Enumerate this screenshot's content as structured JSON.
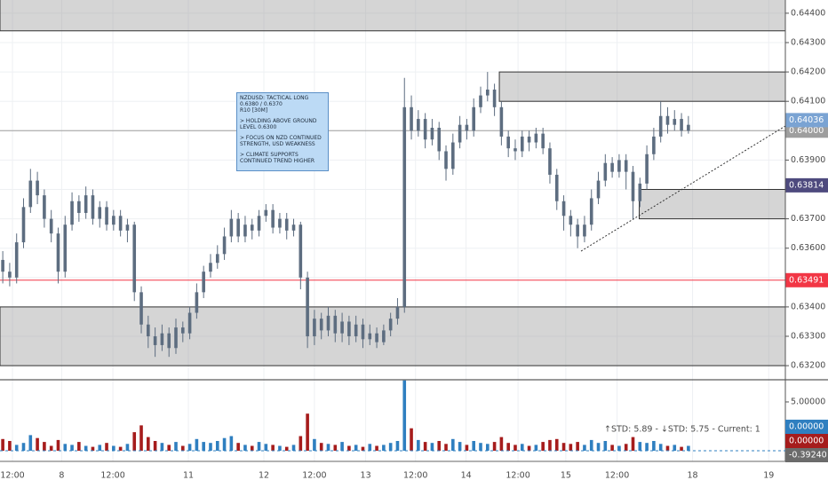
{
  "chart_data": {
    "type": "candlestick",
    "color": "#5d6d80",
    "x": [
      0,
      1,
      2,
      3,
      4,
      5,
      6,
      7,
      8,
      9,
      10,
      11,
      12,
      13,
      14,
      15,
      16,
      17,
      18,
      19,
      20,
      21,
      22,
      23,
      24,
      25,
      26,
      27,
      28,
      29,
      30,
      31,
      32,
      33,
      34,
      35,
      36,
      37,
      38,
      39,
      40,
      41,
      42,
      43,
      44,
      45,
      46,
      47,
      48,
      49,
      50,
      51,
      52,
      53,
      54,
      55,
      56,
      57,
      58,
      59,
      60,
      61,
      62,
      63,
      64,
      65,
      66,
      67,
      68,
      69,
      70,
      71,
      72,
      73,
      74,
      75,
      76,
      77,
      78,
      79,
      80,
      81,
      82,
      83,
      84,
      85,
      86,
      87,
      88,
      89,
      90,
      91,
      92,
      93,
      94,
      95,
      96,
      97,
      98,
      99
    ],
    "open": [
      0.6356,
      0.6352,
      0.635,
      0.6362,
      0.6374,
      0.6383,
      0.6378,
      0.637,
      0.6365,
      0.6352,
      0.6368,
      0.6376,
      0.6372,
      0.6378,
      0.637,
      0.6374,
      0.6368,
      0.6371,
      0.6366,
      0.6368,
      0.6345,
      0.6334,
      0.633,
      0.6327,
      0.6331,
      0.6326,
      0.6333,
      0.6331,
      0.6338,
      0.6345,
      0.6352,
      0.6355,
      0.6358,
      0.6364,
      0.637,
      0.6364,
      0.6368,
      0.6366,
      0.6371,
      0.6373,
      0.6367,
      0.637,
      0.6366,
      0.6368,
      0.635,
      0.633,
      0.6336,
      0.6332,
      0.6337,
      0.6331,
      0.6335,
      0.633,
      0.6334,
      0.6329,
      0.6331,
      0.6328,
      0.6332,
      0.6336,
      0.634,
      0.6408,
      0.64,
      0.6404,
      0.6397,
      0.6401,
      0.6393,
      0.6387,
      0.6396,
      0.6402,
      0.64,
      0.6408,
      0.6412,
      0.6414,
      0.6408,
      0.6398,
      0.6394,
      0.6393,
      0.6398,
      0.6396,
      0.6399,
      0.6394,
      0.6385,
      0.6376,
      0.6371,
      0.6368,
      0.6364,
      0.6368,
      0.6377,
      0.6383,
      0.6389,
      0.6386,
      0.639,
      0.6386,
      0.6376,
      0.6382,
      0.6392,
      0.6398,
      0.6405,
      0.6402,
      0.6404,
      0.64
    ],
    "high": [
      0.6359,
      0.6355,
      0.6365,
      0.6377,
      0.6387,
      0.6386,
      0.638,
      0.6373,
      0.6367,
      0.6371,
      0.6379,
      0.6378,
      0.6381,
      0.638,
      0.6376,
      0.6376,
      0.6373,
      0.6373,
      0.637,
      0.6369,
      0.6347,
      0.6337,
      0.6333,
      0.6334,
      0.6333,
      0.6336,
      0.6335,
      0.634,
      0.6348,
      0.6354,
      0.6358,
      0.6361,
      0.6367,
      0.6373,
      0.6372,
      0.6371,
      0.637,
      0.6373,
      0.6375,
      0.6375,
      0.6372,
      0.6372,
      0.637,
      0.6369,
      0.6352,
      0.6339,
      0.6338,
      0.634,
      0.6339,
      0.6338,
      0.6337,
      0.6337,
      0.6336,
      0.6334,
      0.6333,
      0.6334,
      0.6338,
      0.6343,
      0.6418,
      0.6412,
      0.6407,
      0.6406,
      0.6404,
      0.6403,
      0.6395,
      0.6399,
      0.6405,
      0.6404,
      0.6411,
      0.6415,
      0.642,
      0.6416,
      0.641,
      0.64,
      0.6397,
      0.64,
      0.64,
      0.6401,
      0.6401,
      0.6396,
      0.6387,
      0.6378,
      0.6373,
      0.637,
      0.6371,
      0.638,
      0.6386,
      0.6392,
      0.6391,
      0.6392,
      0.6392,
      0.6388,
      0.6384,
      0.6395,
      0.6401,
      0.641,
      0.6408,
      0.6407,
      0.6406,
      0.6405
    ],
    "low": [
      0.6348,
      0.6347,
      0.6348,
      0.636,
      0.6372,
      0.6375,
      0.6367,
      0.6362,
      0.6348,
      0.635,
      0.6366,
      0.6369,
      0.637,
      0.6368,
      0.6367,
      0.6366,
      0.6366,
      0.6364,
      0.6362,
      0.6342,
      0.6331,
      0.6326,
      0.6323,
      0.6325,
      0.6323,
      0.6324,
      0.6328,
      0.6329,
      0.6336,
      0.6343,
      0.635,
      0.6353,
      0.6356,
      0.6362,
      0.6362,
      0.6362,
      0.6363,
      0.6364,
      0.6369,
      0.6365,
      0.6365,
      0.6363,
      0.6364,
      0.6346,
      0.6326,
      0.6327,
      0.6329,
      0.633,
      0.6328,
      0.6328,
      0.6327,
      0.6328,
      0.6326,
      0.6327,
      0.6326,
      0.6327,
      0.633,
      0.6334,
      0.6338,
      0.6397,
      0.6398,
      0.6394,
      0.6395,
      0.639,
      0.6383,
      0.6385,
      0.6394,
      0.6397,
      0.6398,
      0.6406,
      0.641,
      0.6405,
      0.6395,
      0.6391,
      0.639,
      0.6391,
      0.6393,
      0.6394,
      0.6392,
      0.6382,
      0.6373,
      0.6366,
      0.6364,
      0.636,
      0.6362,
      0.6366,
      0.6375,
      0.6381,
      0.6384,
      0.6384,
      0.638,
      0.637,
      0.6374,
      0.638,
      0.639,
      0.6396,
      0.6399,
      0.64,
      0.6398,
      0.6399
    ],
    "close": [
      0.6352,
      0.635,
      0.6362,
      0.6374,
      0.6383,
      0.6378,
      0.637,
      0.6365,
      0.6352,
      0.6368,
      0.6376,
      0.6372,
      0.6378,
      0.637,
      0.6374,
      0.6368,
      0.6371,
      0.6366,
      0.6368,
      0.6345,
      0.6334,
      0.633,
      0.6327,
      0.6331,
      0.6326,
      0.6333,
      0.6331,
      0.6338,
      0.6345,
      0.6352,
      0.6355,
      0.6358,
      0.6364,
      0.637,
      0.6364,
      0.6368,
      0.6366,
      0.6371,
      0.6373,
      0.6367,
      0.637,
      0.6366,
      0.6368,
      0.635,
      0.633,
      0.6336,
      0.6332,
      0.6337,
      0.6331,
      0.6335,
      0.633,
      0.6334,
      0.6329,
      0.6331,
      0.6328,
      0.6332,
      0.6336,
      0.634,
      0.6408,
      0.64,
      0.6404,
      0.6397,
      0.6401,
      0.6393,
      0.6387,
      0.6396,
      0.6402,
      0.64,
      0.6408,
      0.6412,
      0.6414,
      0.6408,
      0.6398,
      0.6394,
      0.6393,
      0.6398,
      0.6396,
      0.6399,
      0.6394,
      0.6385,
      0.6376,
      0.6371,
      0.6368,
      0.6364,
      0.6368,
      0.6377,
      0.6383,
      0.6389,
      0.6386,
      0.639,
      0.6386,
      0.6376,
      0.6382,
      0.6392,
      0.6398,
      0.6405,
      0.6402,
      0.6404,
      0.64,
      0.6402
    ],
    "xlim": [
      -0.4,
      113
    ],
    "ylim": [
      0.63152,
      0.64445
    ],
    "xticks": [
      {
        "value": 1.4,
        "label": "12:00"
      },
      {
        "value": 8.5,
        "label": "8"
      },
      {
        "value": 15.9,
        "label": "12:00"
      },
      {
        "value": 26.8,
        "label": "11"
      },
      {
        "value": 37.7,
        "label": "12"
      },
      {
        "value": 45,
        "label": "12:00"
      },
      {
        "value": 52.4,
        "label": "13"
      },
      {
        "value": 59.6,
        "label": "12:00"
      },
      {
        "value": 66.9,
        "label": "14"
      },
      {
        "value": 74.4,
        "label": "12:00"
      },
      {
        "value": 81.3,
        "label": "15"
      },
      {
        "value": 88.7,
        "label": "12:00"
      },
      {
        "value": 99.6,
        "label": "18"
      },
      {
        "value": 110.6,
        "label": "19"
      }
    ],
    "yticks": [
      {
        "value": 0.644,
        "label": "0.64400"
      },
      {
        "value": 0.643,
        "label": "0.64300"
      },
      {
        "value": 0.642,
        "label": "0.64200"
      },
      {
        "value": 0.641,
        "label": "0.64100"
      },
      {
        "value": 0.64,
        "label": "0.64000"
      },
      {
        "value": 0.639,
        "label": "0.63900"
      },
      {
        "value": 0.638,
        "label": "0.63800"
      },
      {
        "value": 0.637,
        "label": "0.63700"
      },
      {
        "value": 0.636,
        "label": "0.63600"
      },
      {
        "value": 0.635,
        "label": "0.63500"
      },
      {
        "value": 0.634,
        "label": "0.63400"
      },
      {
        "value": 0.633,
        "label": "0.63300"
      },
      {
        "value": 0.632,
        "label": "0.63200"
      }
    ],
    "grid": true,
    "zones": [
      {
        "low": 0.6434,
        "high": 0.6446
      },
      {
        "low": 0.632,
        "high": 0.634
      },
      {
        "low": 0.641,
        "high": 0.642,
        "x_start": 71.7
      },
      {
        "low": 0.637,
        "high": 0.638,
        "x_start": 91.9
      }
    ],
    "trendline": {
      "x": [
        83.5,
        113
      ],
      "y": [
        0.6359,
        0.64016
      ]
    },
    "price_lines": [
      {
        "value": 0.64,
        "label": "0.64000",
        "color": "#9e9e9e"
      },
      {
        "value": 0.63491,
        "label": "0.63491",
        "color": "#f23645"
      }
    ],
    "price_badges": [
      {
        "value": 0.64036,
        "label": "0.64036",
        "color": "#7aa3d3"
      },
      {
        "value": 0.63814,
        "label": "0.63814",
        "color": "#4e4a7e"
      }
    ],
    "annotation": [
      "NZDUSD: TACTICAL LONG 0.6380 / 0.6370",
      "R10 [30M]",
      "> HOLDING ABOVE GROUND LEVEL 0.6300",
      "> FOCUS ON NZD CONTINUED STRENGTH, USD WEAKNESS",
      "> CLIMATE SUPPORTS CONTINUED TREND HIGHER"
    ],
    "indicator": {
      "type": "histogram",
      "label": "↑STD: 5.89 - ↓STD: 5.75 - Current: 1",
      "up_color": "#2f7fc0",
      "down_color": "#a61c1c",
      "values": [
        1.2,
        1.0,
        0.6,
        0.8,
        1.6,
        1.3,
        0.9,
        0.5,
        1.1,
        0.7,
        0.6,
        0.9,
        0.5,
        0.4,
        0.6,
        0.8,
        0.5,
        0.4,
        0.7,
        1.9,
        2.6,
        1.4,
        1.0,
        0.8,
        0.6,
        0.9,
        0.5,
        0.7,
        1.2,
        0.9,
        0.8,
        1.0,
        1.3,
        1.5,
        0.8,
        0.6,
        0.5,
        0.9,
        0.7,
        0.6,
        0.5,
        0.4,
        0.6,
        1.5,
        3.8,
        1.2,
        0.8,
        0.7,
        0.6,
        0.9,
        0.5,
        0.6,
        0.4,
        0.7,
        0.5,
        0.6,
        0.8,
        1.0,
        7.2,
        2.3,
        1.1,
        0.9,
        0.8,
        1.0,
        0.7,
        1.2,
        0.9,
        0.6,
        1.0,
        0.8,
        0.7,
        0.9,
        1.4,
        0.8,
        0.6,
        0.7,
        0.5,
        0.6,
        0.9,
        1.1,
        1.2,
        0.8,
        0.7,
        0.9,
        0.6,
        1.1,
        0.8,
        1.0,
        0.6,
        0.5,
        0.7,
        1.4,
        0.9,
        0.8,
        1.0,
        0.7,
        0.5,
        0.6,
        0.4,
        0.5
      ],
      "ylim": [
        -1.09,
        7.27
      ],
      "yticks": [
        {
          "value": 5,
          "label": "5.00000"
        }
      ],
      "badges": [
        {
          "label": "0.00000",
          "color": "#2f7fc0"
        },
        {
          "label": "0.00000",
          "color": "#a61c1c"
        },
        {
          "label": "-0.39240",
          "color": "#6b6b6b"
        }
      ]
    }
  }
}
